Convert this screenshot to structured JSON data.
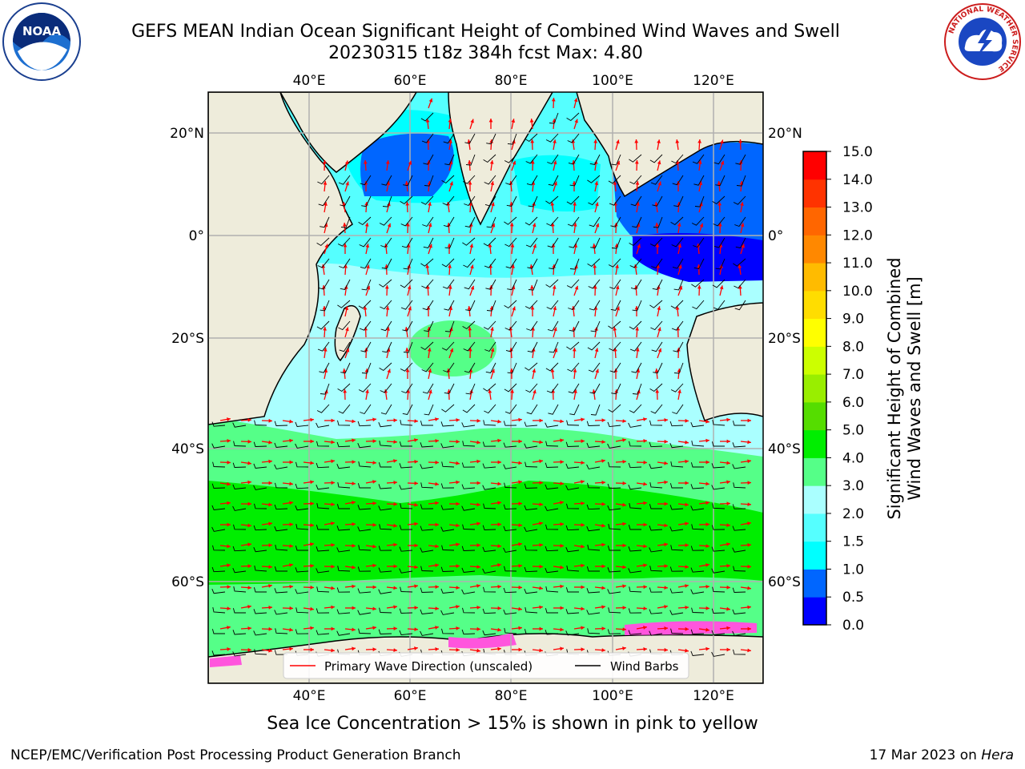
{
  "header": {
    "title_line1": "GEFS MEAN Indian Ocean Significant Height of Combined Wind Waves and Swell",
    "title_line2": "20230315 t18z 384h fcst   Max: 4.80"
  },
  "logos": {
    "left": {
      "icon": "noaa-logo",
      "text": "NOAA"
    },
    "right": {
      "icon": "nws-logo",
      "ring_text": "NATIONAL WEATHER SERVICE"
    }
  },
  "map": {
    "lon_ticks": [
      "40°E",
      "60°E",
      "80°E",
      "100°E",
      "120°E"
    ],
    "lat_ticks": [
      "20°N",
      "0°",
      "20°S",
      "40°S",
      "60°S"
    ],
    "legend": {
      "wave_direction": "Primary Wave Direction (unscaled)",
      "wind_barbs": "Wind Barbs"
    },
    "colors": {
      "land": "#eeecdb",
      "ice": "#ff55dd"
    }
  },
  "colorbar": {
    "label_line1": "Significant Height of Combined",
    "label_line2": "Wind Waves and Swell [m]",
    "ticks": [
      "0.0",
      "0.5",
      "1.0",
      "1.5",
      "2.0",
      "3.0",
      "4.0",
      "5.0",
      "6.0",
      "7.0",
      "8.0",
      "9.0",
      "10.0",
      "11.0",
      "12.0",
      "13.0",
      "14.0",
      "15.0"
    ],
    "colors": [
      "#0000ff",
      "#0066ff",
      "#00ffff",
      "#55ffff",
      "#aaffff",
      "#55ff88",
      "#00ee00",
      "#55dd00",
      "#99ee00",
      "#ccff00",
      "#ffff00",
      "#ffdd00",
      "#ffbb00",
      "#ff8800",
      "#ff6600",
      "#ff3300",
      "#ff0000"
    ]
  },
  "footer": {
    "sea_ice_note": "Sea Ice Concentration > 15% is shown in pink to yellow",
    "credit": "NCEP/EMC/Verification Post Processing Product Generation Branch",
    "date_prefix": "17 Mar 2023 on ",
    "date_host": "Hera"
  }
}
